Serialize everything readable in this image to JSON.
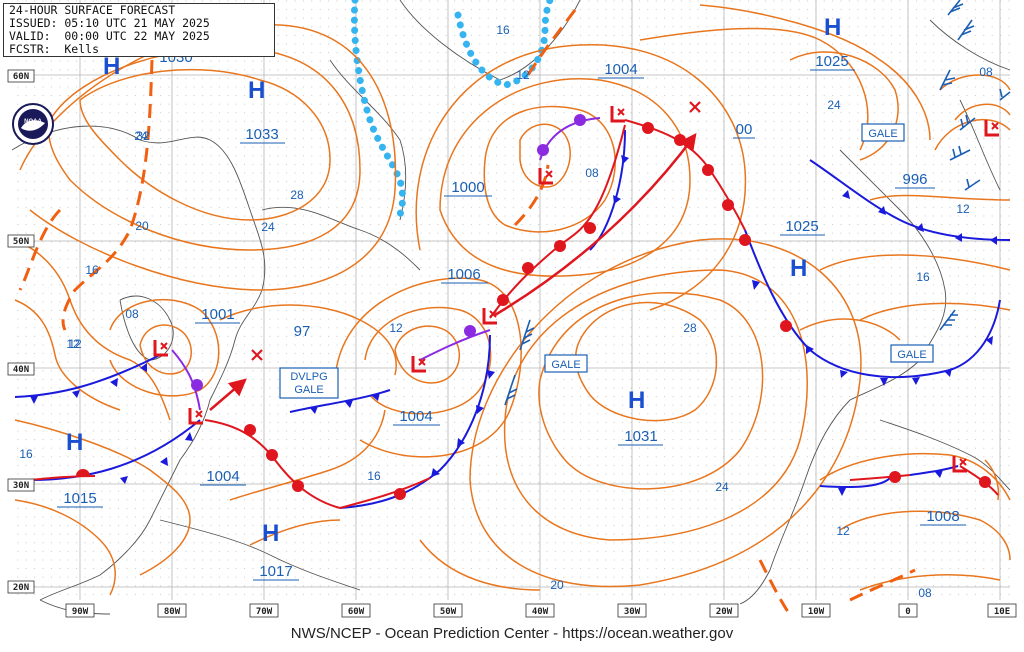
{
  "header": {
    "title": "24-HOUR SURFACE FORECAST",
    "issued": "ISSUED: 05:10 UTC 21 MAY 2025",
    "valid": "VALID:  00:00 UTC 22 MAY 2025",
    "forecaster": "FCSTR:  Kells"
  },
  "footer": "NWS/NCEP - Ocean Prediction Center - https://ocean.weather.gov",
  "logo_text": "NOAA",
  "lat_labels": [
    "60N",
    "50N",
    "40N",
    "30N",
    "20N"
  ],
  "lon_labels": [
    "90W",
    "80W",
    "70W",
    "60W",
    "50W",
    "40W",
    "30W",
    "20W",
    "10W",
    "0",
    "10E"
  ],
  "highs": [
    {
      "letter": "H",
      "pressure": "1033"
    },
    {
      "letter": "H",
      "pressure": "1025"
    },
    {
      "letter": "H",
      "pressure": "1025"
    },
    {
      "letter": "H",
      "pressure": "1031"
    },
    {
      "letter": "H",
      "pressure": "1015"
    },
    {
      "letter": "H",
      "pressure": "1017"
    },
    {
      "letter": "H",
      "pressure": "1030"
    }
  ],
  "lows": [
    {
      "pressure": "1001"
    },
    {
      "pressure": "1004"
    },
    {
      "pressure": "1004"
    },
    {
      "pressure": "1000"
    },
    {
      "pressure": "1004"
    },
    {
      "pressure": "1006"
    },
    {
      "pressure": "996"
    },
    {
      "pressure": "1008"
    },
    {
      "pressure": "00"
    },
    {
      "pressure": "97"
    }
  ],
  "warnings": [
    "GALE",
    "GALE",
    "GALE",
    "DVLPG",
    "GALE"
  ],
  "isobar_values": [
    "32",
    "28",
    "24",
    "20",
    "16",
    "12",
    "08",
    "16",
    "12",
    "28",
    "24",
    "20",
    "16",
    "12",
    "08",
    "16",
    "12",
    "08",
    "24",
    "12",
    "08",
    "16",
    "12",
    "24"
  ],
  "colors": {
    "isobar": "#e8761e",
    "cold_front": "#1a1adc",
    "warm_front": "#e0161e",
    "occluded_front": "#8a2be2",
    "ice": "#35b4f0",
    "trough": "#f06010",
    "label_blue": "#1a5fb4",
    "low_red": "#e0161e",
    "grid": "#c8c8c8"
  },
  "icons": [
    "noaa-logo-icon",
    "low-pressure-symbol-icon",
    "storm-track-arrow-icon",
    "wind-barb-icon"
  ]
}
